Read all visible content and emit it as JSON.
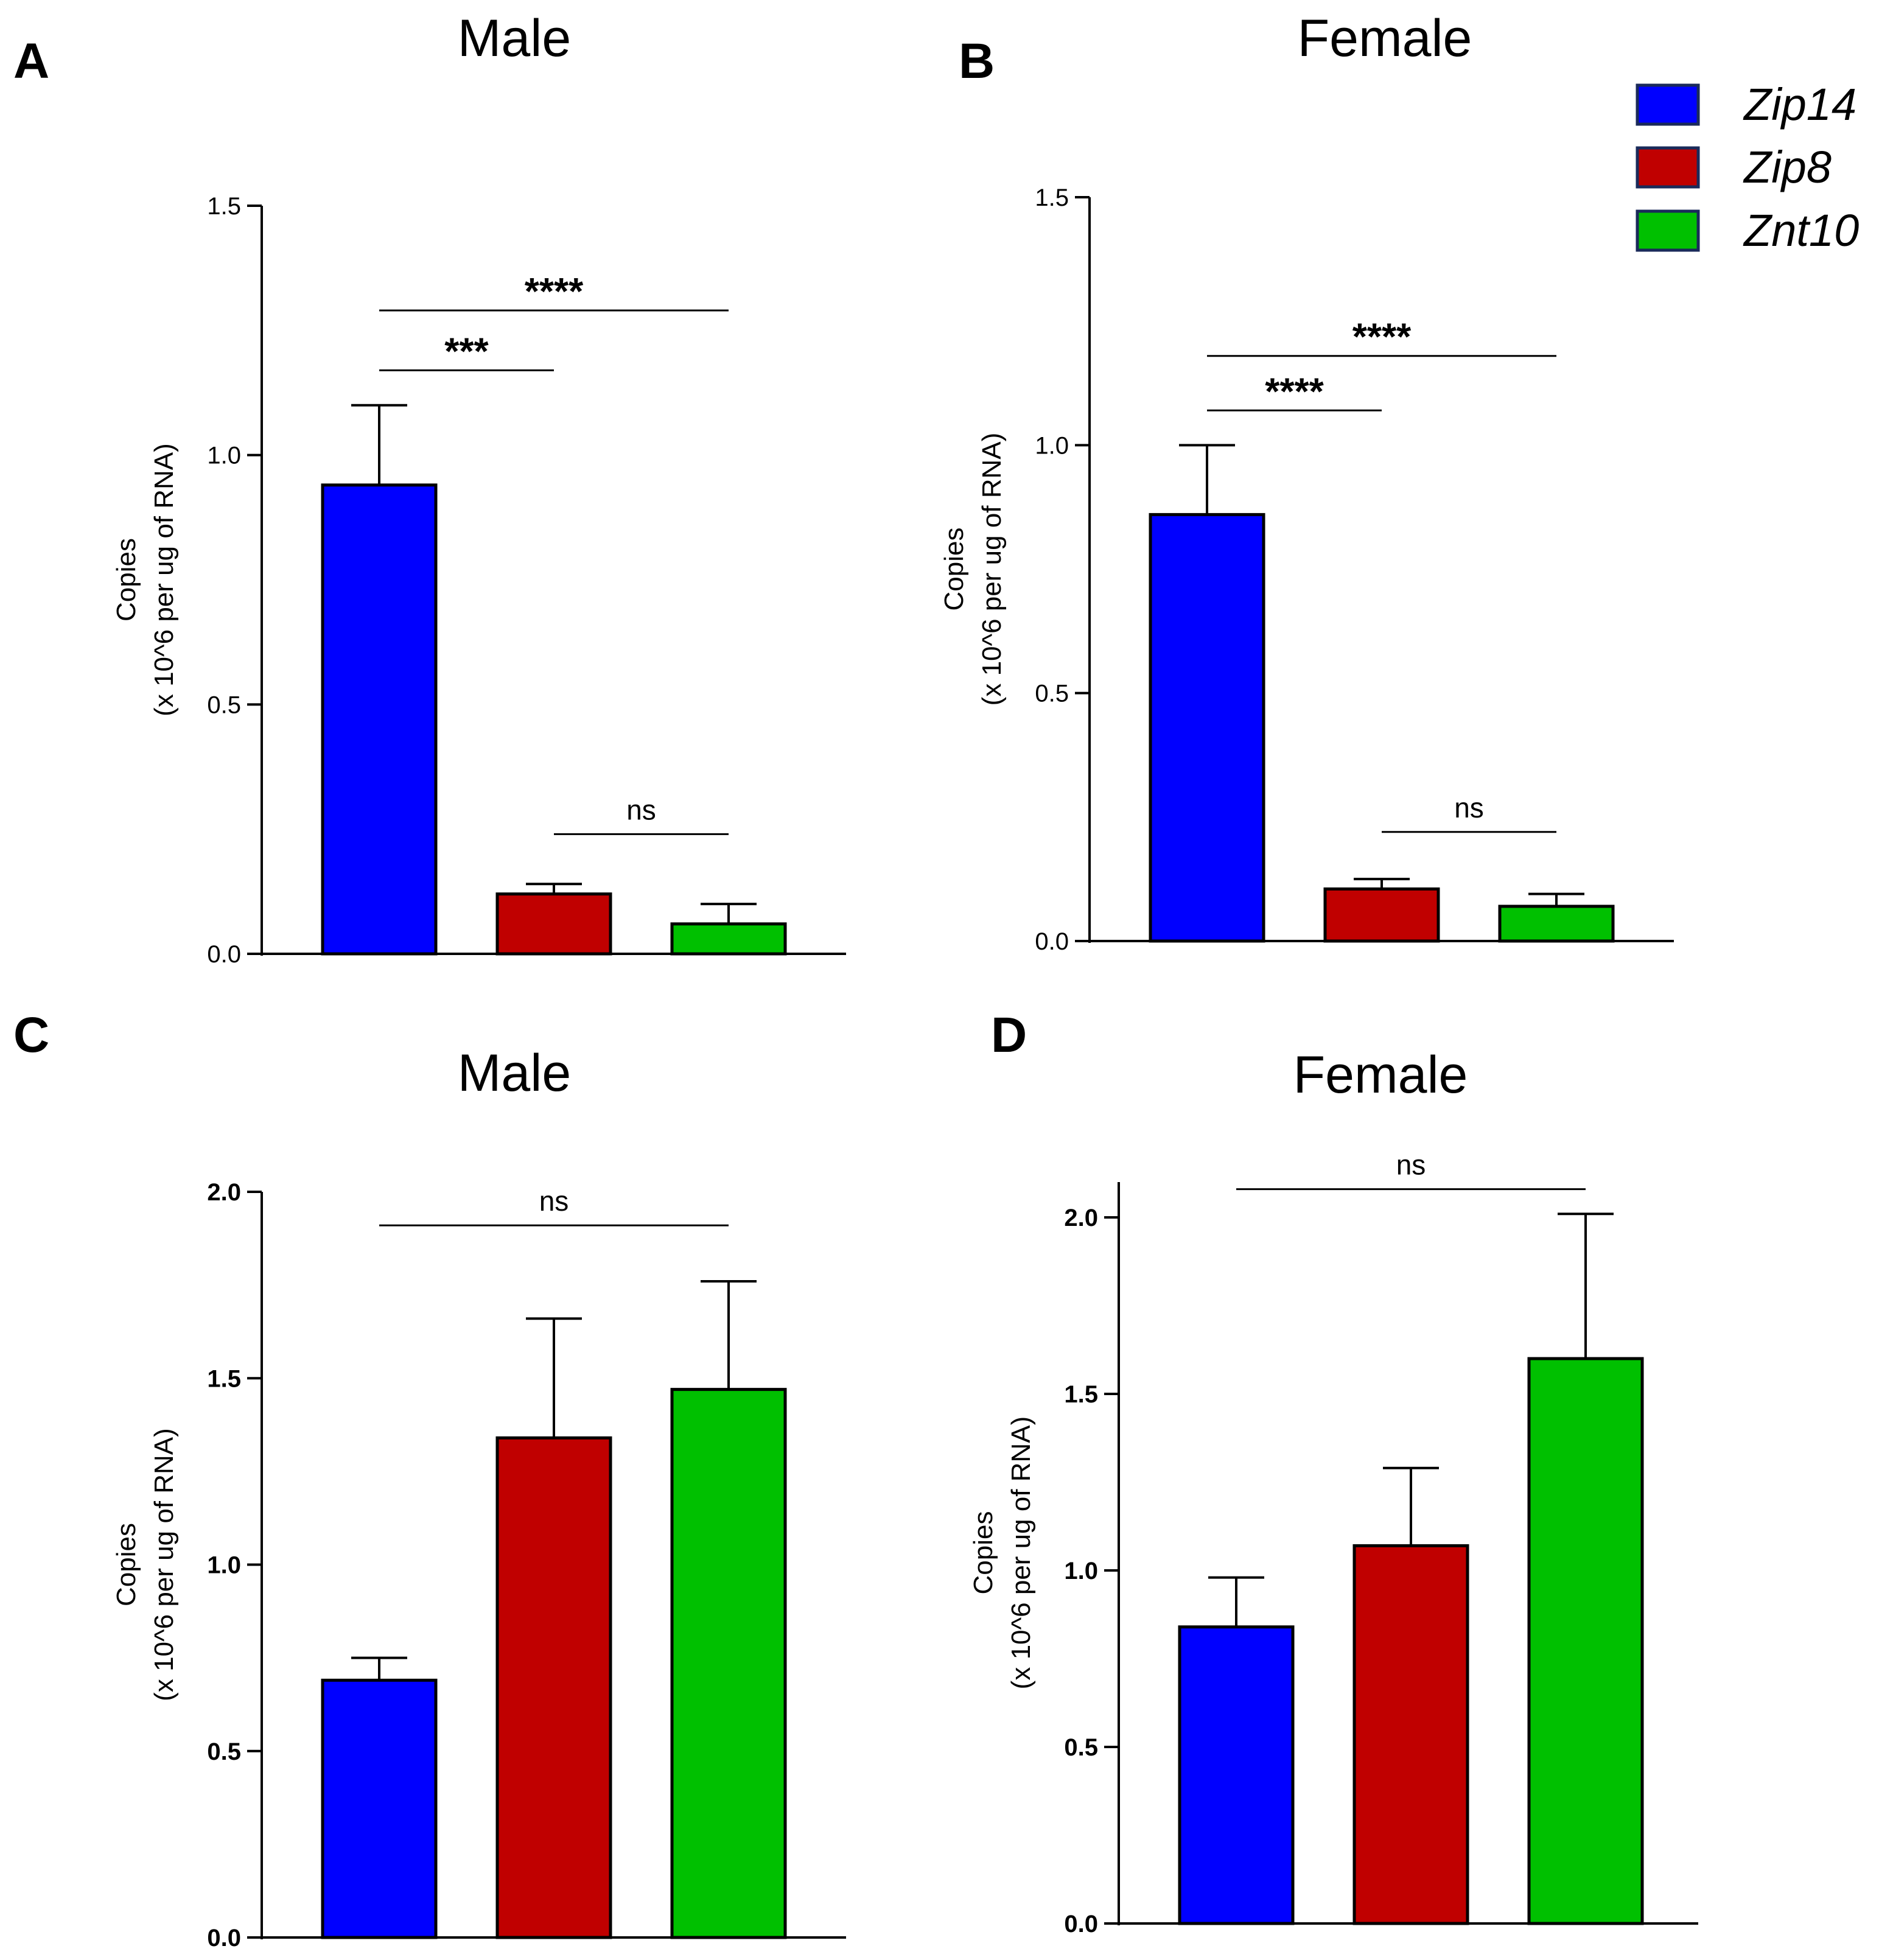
{
  "colors": {
    "Zip14": "#0000ff",
    "Zip8": "#c00000",
    "Znt10": "#00c000",
    "axis": "#000000"
  },
  "legend": {
    "items": [
      {
        "name": "Zip14",
        "color": "#0000ff"
      },
      {
        "name": "Zip8",
        "color": "#c00000"
      },
      {
        "name": "Znt10",
        "color": "#00c000"
      }
    ]
  },
  "chart_data": [
    {
      "panel": "A",
      "type": "bar",
      "title": "Male",
      "ylabel_line1": "Copies",
      "ylabel_line2": "(x 10^6 per ug of RNA)",
      "categories": [
        "Zip14",
        "Zip8",
        "Znt10"
      ],
      "values": [
        0.94,
        0.12,
        0.06
      ],
      "errors": [
        0.16,
        0.02,
        0.04
      ],
      "ylim": [
        0,
        1.5
      ],
      "ticks": [
        "0.0",
        "0.5",
        "1.0",
        "1.5"
      ],
      "tick_values": [
        0,
        0.5,
        1.0,
        1.5
      ],
      "significance": [
        {
          "from": 0,
          "to": 2,
          "label": "****",
          "level": 1.29
        },
        {
          "from": 0,
          "to": 1,
          "label": "***",
          "level": 1.17
        },
        {
          "from": 1,
          "to": 2,
          "label": "ns",
          "level": 0.24
        }
      ]
    },
    {
      "panel": "B",
      "type": "bar",
      "title": "Female",
      "ylabel_line1": "Copies",
      "ylabel_line2": "(x 10^6 per ug of RNA)",
      "categories": [
        "Zip14",
        "Zip8",
        "Znt10"
      ],
      "values": [
        0.86,
        0.105,
        0.07
      ],
      "errors": [
        0.14,
        0.02,
        0.025
      ],
      "ylim": [
        0,
        1.5
      ],
      "ticks": [
        "0.0",
        "0.5",
        "1.0",
        "1.5"
      ],
      "tick_values": [
        0,
        0.5,
        1.0,
        1.5
      ],
      "significance": [
        {
          "from": 0,
          "to": 2,
          "label": "****",
          "level": 1.18
        },
        {
          "from": 0,
          "to": 1,
          "label": "****",
          "level": 1.07
        },
        {
          "from": 1,
          "to": 2,
          "label": "ns",
          "level": 0.22
        }
      ]
    },
    {
      "panel": "C",
      "type": "bar",
      "title": "Male",
      "ylabel_line1": "Copies",
      "ylabel_line2": "(x 10^6 per ug of RNA)",
      "categories": [
        "Zip14",
        "Zip8",
        "Znt10"
      ],
      "values": [
        0.69,
        1.34,
        1.47
      ],
      "errors": [
        0.06,
        0.32,
        0.29
      ],
      "ylim": [
        0,
        2.0
      ],
      "ticks": [
        "0.0",
        "0.5",
        "1.0",
        "1.5",
        "2.0"
      ],
      "tick_values": [
        0,
        0.5,
        1.0,
        1.5,
        2.0
      ],
      "significance": [
        {
          "from": 0,
          "to": 2,
          "label": "ns",
          "level": 1.91
        }
      ]
    },
    {
      "panel": "D",
      "type": "bar",
      "title": "Female",
      "ylabel_line1": "Copies",
      "ylabel_line2": "(x 10^6 per ug of RNA)",
      "categories": [
        "Zip14",
        "Zip8",
        "Znt10"
      ],
      "values": [
        0.84,
        1.07,
        1.6
      ],
      "errors": [
        0.14,
        0.22,
        0.41
      ],
      "ylim": [
        0,
        2.1
      ],
      "ticks": [
        "0.0",
        "0.5",
        "1.0",
        "1.5",
        "2.0"
      ],
      "tick_values": [
        0,
        0.5,
        1.0,
        1.5,
        2.0
      ],
      "significance": [
        {
          "from": 0,
          "to": 2,
          "label": "ns",
          "level": 2.08
        }
      ]
    }
  ]
}
